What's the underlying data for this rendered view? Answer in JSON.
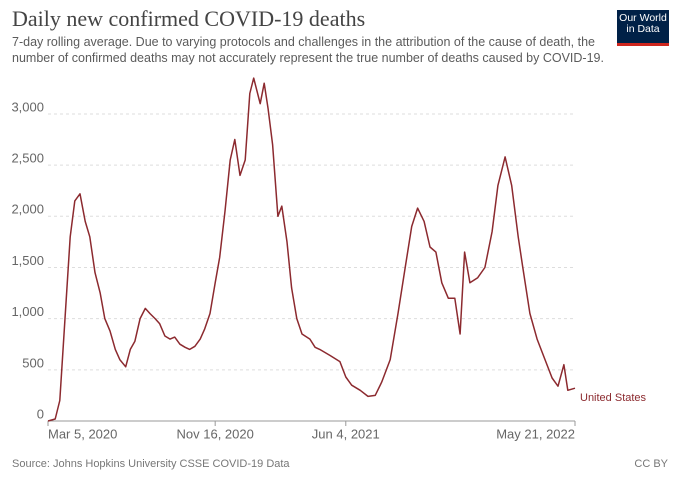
{
  "chart_data": {
    "type": "line",
    "title": "Daily new confirmed COVID-19 deaths",
    "subtitle": "7-day rolling average. Due to varying protocols and challenges in the attribution of the cause of death, the number of confirmed deaths may not accurately represent the true number of deaths caused by COVID-19.",
    "logo": "Our World in Data",
    "source": "Source: Johns Hopkins University CSSE COVID-19 Data",
    "license": "CC BY",
    "x": [
      "2020-03-05",
      "2020-03-16",
      "2020-03-23",
      "2020-03-31",
      "2020-04-08",
      "2020-04-15",
      "2020-04-23",
      "2020-05-01",
      "2020-05-08",
      "2020-05-16",
      "2020-05-24",
      "2020-05-31",
      "2020-06-08",
      "2020-06-16",
      "2020-06-23",
      "2020-07-02",
      "2020-07-09",
      "2020-07-16",
      "2020-07-24",
      "2020-08-01",
      "2020-08-08",
      "2020-08-16",
      "2020-08-23",
      "2020-08-31",
      "2020-09-08",
      "2020-09-15",
      "2020-09-23",
      "2020-10-01",
      "2020-10-08",
      "2020-10-16",
      "2020-10-24",
      "2020-10-31",
      "2020-11-08",
      "2020-11-16",
      "2020-11-23",
      "2020-12-01",
      "2020-12-09",
      "2020-12-16",
      "2020-12-24",
      "2021-01-01",
      "2021-01-08",
      "2021-01-14",
      "2021-01-24",
      "2021-01-30",
      "2021-02-05",
      "2021-02-12",
      "2021-02-20",
      "2021-02-26",
      "2021-03-06",
      "2021-03-13",
      "2021-03-21",
      "2021-03-29",
      "2021-04-10",
      "2021-04-18",
      "2021-04-25",
      "2021-05-11",
      "2021-05-26",
      "2021-06-04",
      "2021-06-13",
      "2021-06-26",
      "2021-07-08",
      "2021-07-19",
      "2021-07-29",
      "2021-08-11",
      "2021-08-23",
      "2021-09-03",
      "2021-09-13",
      "2021-09-22",
      "2021-10-02",
      "2021-10-11",
      "2021-10-20",
      "2021-10-29",
      "2021-11-08",
      "2021-11-18",
      "2021-11-26",
      "2021-12-03",
      "2021-12-11",
      "2021-12-23",
      "2022-01-03",
      "2022-01-14",
      "2022-01-23",
      "2022-02-03",
      "2022-02-13",
      "2022-02-23",
      "2022-03-02",
      "2022-03-13",
      "2022-03-24",
      "2022-04-05",
      "2022-04-16",
      "2022-04-25",
      "2022-05-04",
      "2022-05-10",
      "2022-05-21"
    ],
    "series": [
      {
        "name": "United States",
        "color": "#8c2a2f",
        "values": [
          0,
          20,
          200,
          1000,
          1800,
          2150,
          2220,
          1950,
          1800,
          1450,
          1250,
          1000,
          880,
          700,
          600,
          530,
          700,
          780,
          1000,
          1100,
          1050,
          1000,
          950,
          830,
          800,
          820,
          750,
          720,
          700,
          730,
          800,
          900,
          1050,
          1350,
          1600,
          2050,
          2550,
          2750,
          2400,
          2550,
          3200,
          3350,
          3100,
          3300,
          3050,
          2700,
          2000,
          2100,
          1750,
          1300,
          1000,
          850,
          800,
          720,
          700,
          640,
          580,
          430,
          350,
          300,
          240,
          250,
          380,
          600,
          1050,
          1500,
          1900,
          2080,
          1950,
          1700,
          1650,
          1350,
          1200,
          1200,
          850,
          1650,
          1350,
          1400,
          1500,
          1850,
          2300,
          2580,
          2300,
          1800,
          1500,
          1050,
          800,
          600,
          420,
          340,
          550,
          300,
          320
        ]
      }
    ],
    "xlim": [
      "2020-03-05",
      "2022-05-21"
    ],
    "xticks": [
      {
        "value": "2020-03-05",
        "label": "Mar 5, 2020"
      },
      {
        "value": "2020-11-16",
        "label": "Nov 16, 2020"
      },
      {
        "value": "2021-06-04",
        "label": "Jun 4, 2021"
      },
      {
        "value": "2022-05-21",
        "label": "May 21, 2022"
      }
    ],
    "ylim": [
      0,
      3400
    ],
    "yticks": [
      0,
      500,
      {
        "value": 1000,
        "label": "1,000"
      },
      {
        "value": 1500,
        "label": "1,500"
      },
      {
        "value": 2000,
        "label": "2,000"
      },
      {
        "value": 2500,
        "label": "2,500"
      },
      {
        "value": 3000,
        "label": "3,000"
      }
    ],
    "grid": true
  }
}
